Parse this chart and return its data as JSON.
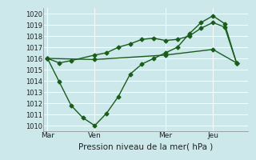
{
  "background_color": "#cce8ea",
  "grid_color": "#ffffff",
  "line_color": "#1a5c1a",
  "marker": "D",
  "markersize": 2.5,
  "linewidth": 1.0,
  "xlabel": "Pression niveau de la mer( hPa )",
  "xlabel_fontsize": 7.5,
  "ylabel": "",
  "ylim": [
    1009.5,
    1020.5
  ],
  "yticks": [
    1010,
    1011,
    1012,
    1013,
    1014,
    1015,
    1016,
    1017,
    1018,
    1019,
    1020
  ],
  "xtick_labels": [
    "Mar",
    "Ven",
    "Mer",
    "Jeu"
  ],
  "xtick_positions": [
    0,
    24,
    60,
    84
  ],
  "vline_positions": [
    24,
    60,
    84
  ],
  "xlim": [
    -2,
    102
  ],
  "series1_x": [
    0,
    6,
    12,
    24,
    30,
    36,
    42,
    48,
    54,
    60,
    66,
    72,
    78,
    84,
    90,
    96
  ],
  "series1_y": [
    1016.0,
    1015.6,
    1015.8,
    1016.3,
    1016.5,
    1017.0,
    1017.3,
    1017.7,
    1017.8,
    1017.6,
    1017.7,
    1018.0,
    1018.7,
    1019.2,
    1018.8,
    1015.6
  ],
  "series2_x": [
    0,
    6,
    12,
    18,
    24,
    30,
    36,
    42,
    48,
    54,
    60,
    66,
    72,
    78,
    84,
    90,
    96
  ],
  "series2_y": [
    1016.0,
    1013.9,
    1011.8,
    1010.7,
    1010.0,
    1011.1,
    1012.6,
    1014.6,
    1015.5,
    1016.0,
    1016.5,
    1017.0,
    1018.2,
    1019.2,
    1019.8,
    1019.1,
    1015.6
  ],
  "series3_x": [
    0,
    24,
    60,
    84,
    96
  ],
  "series3_y": [
    1016.0,
    1015.9,
    1016.3,
    1016.8,
    1015.6
  ]
}
